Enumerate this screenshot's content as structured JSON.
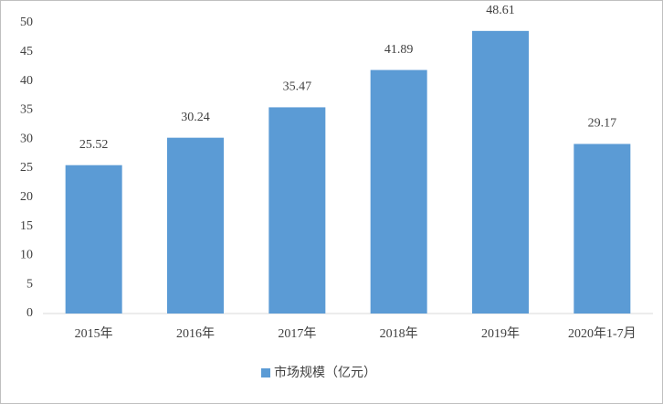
{
  "chart_data": {
    "type": "bar",
    "categories": [
      "2015年",
      "2016年",
      "2017年",
      "2018年",
      "2019年",
      "2020年1-7月"
    ],
    "series": [
      {
        "name": "市场规模（亿元）",
        "color": "#5b9bd5",
        "values": [
          25.52,
          30.24,
          35.47,
          41.89,
          48.61,
          29.17
        ]
      }
    ],
    "ylim": [
      0,
      50
    ],
    "yticks": [
      0,
      5,
      10,
      15,
      20,
      25,
      30,
      35,
      40,
      45,
      50
    ],
    "grid": false,
    "legend": "bottom"
  }
}
